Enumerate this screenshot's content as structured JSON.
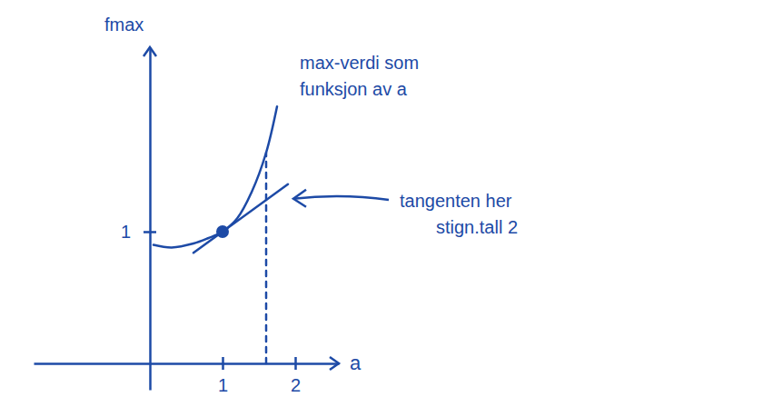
{
  "chart_data": {
    "type": "line",
    "x_label": "a",
    "y_label": "fmax",
    "xlim": [
      -1.6,
      2.6
    ],
    "ylim": [
      -0.2,
      2.4
    ],
    "xticks": [
      1,
      2
    ],
    "yticks": [
      1
    ],
    "series": [
      {
        "color": "#1d4aa6",
        "line_style": "solid",
        "marker": "none",
        "x": [
          0.05,
          0.3,
          0.6,
          0.8,
          1.0,
          1.2,
          1.4,
          1.6,
          1.75
        ],
        "values": [
          0.9,
          0.88,
          0.91,
          0.95,
          1.0,
          1.1,
          1.3,
          1.6,
          1.95
        ]
      },
      {
        "color": "#1d4aa6",
        "line_style": "solid",
        "marker": "none",
        "x": [
          0.6,
          1.9
        ],
        "values": [
          0.84,
          1.36
        ]
      },
      {
        "color": "#1d4aa6",
        "line_style": "dashed",
        "marker": "none",
        "x": [
          1.6,
          1.6
        ],
        "values": [
          0,
          1.6
        ]
      },
      {
        "type": "scatter",
        "color": "#1d4aa6",
        "marker": "circle",
        "x": [
          1
        ],
        "values": [
          1
        ]
      }
    ],
    "annotations": [
      {
        "text": [
          "max-verdi som",
          "funksjon av a"
        ]
      },
      {
        "text": [
          "tangenten her",
          "stign.tall 2"
        ]
      }
    ]
  }
}
